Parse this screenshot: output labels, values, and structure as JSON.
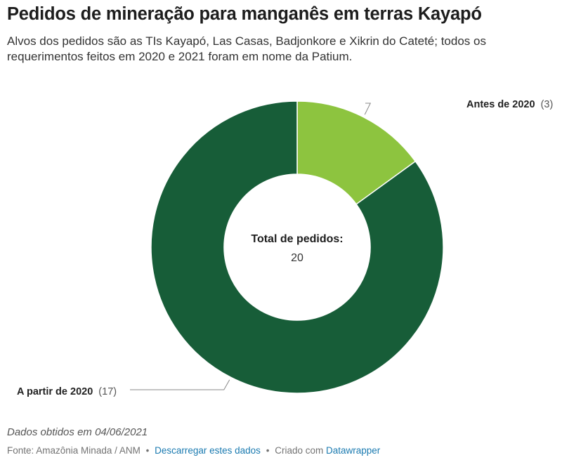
{
  "chart_data": {
    "type": "pie",
    "variant": "donut",
    "title": "Pedidos de mineração para manganês em terras Kayapó",
    "subtitle": "Alvos dos pedidos são as TIs Kayapó, Las Casas, Badjonkore e Xikrin do Cateté; todos os requerimentos feitos em 2020 e 2021 foram em nome da Patium.",
    "slices": [
      {
        "label": "Antes de 2020",
        "value": 3,
        "value_text": "(3)",
        "color": "#8dc43f"
      },
      {
        "label": "A partir de 2020",
        "value": 17,
        "value_text": "(17)",
        "color": "#175d38"
      }
    ],
    "center_label": "Total de pedidos:",
    "center_value": "20"
  },
  "notes": "Dados obtidos em 04/06/2021",
  "footer": {
    "source": "Fonte: Amazônia Minada / ANM",
    "separator": "•",
    "download_link": "Descarregar estes dados",
    "created_with": "Criado com",
    "datawrapper_link": "Datawrapper"
  }
}
